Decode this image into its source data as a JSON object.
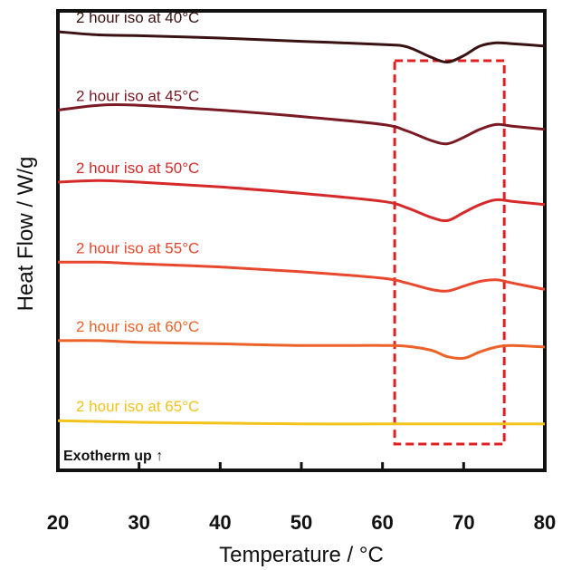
{
  "chart_data": {
    "type": "line",
    "xlabel": "Temperature / °C",
    "ylabel": "Heat Flow / W/g",
    "xlim": [
      20,
      80
    ],
    "xticks": [
      20,
      30,
      40,
      50,
      60,
      70,
      80
    ],
    "yticks_shown": false,
    "annotation": "Exotherm up ↑",
    "highlight_box": {
      "x_range": [
        61.5,
        75
      ],
      "style": "red dashed"
    },
    "series": [
      {
        "name": "2 hour iso at 40°C",
        "color": "#3a1212",
        "x": [
          20,
          25,
          30,
          40,
          50,
          60,
          63,
          66,
          68,
          70,
          72,
          74,
          76,
          80
        ],
        "y": [
          0.2,
          0.0,
          -0.05,
          -0.2,
          -0.4,
          -0.6,
          -0.75,
          -1.4,
          -1.7,
          -1.3,
          -0.7,
          -0.5,
          -0.55,
          -0.7
        ]
      },
      {
        "name": "2 hour iso at 45°C",
        "color": "#7a1a22",
        "x": [
          20,
          25,
          30,
          40,
          50,
          60,
          63,
          66,
          68,
          70,
          72,
          74,
          76,
          80
        ],
        "y": [
          -4.7,
          -4.4,
          -4.4,
          -4.7,
          -5.1,
          -5.6,
          -6.0,
          -6.6,
          -6.8,
          -6.4,
          -5.9,
          -5.6,
          -5.7,
          -5.9
        ]
      },
      {
        "name": "2 hour iso at 50°C",
        "color": "#d62a2a",
        "x": [
          20,
          25,
          30,
          40,
          50,
          60,
          63,
          66,
          68,
          70,
          72,
          74,
          76,
          80
        ],
        "y": [
          -9.2,
          -9.1,
          -9.2,
          -9.5,
          -9.9,
          -10.4,
          -10.8,
          -11.4,
          -11.6,
          -11.1,
          -10.6,
          -10.3,
          -10.4,
          -10.6
        ]
      },
      {
        "name": "2 hour iso at 55°C",
        "color": "#e8492e",
        "x": [
          20,
          25,
          30,
          40,
          50,
          60,
          63,
          66,
          68,
          70,
          72,
          74,
          76,
          80
        ],
        "y": [
          -14.2,
          -14.2,
          -14.3,
          -14.5,
          -14.8,
          -15.2,
          -15.5,
          -15.9,
          -16.0,
          -15.7,
          -15.4,
          -15.3,
          -15.5,
          -15.9
        ]
      },
      {
        "name": "2 hour iso at 60°C",
        "color": "#ec6228",
        "x": [
          20,
          25,
          30,
          40,
          50,
          60,
          63,
          66,
          68,
          70,
          72,
          74,
          76,
          80
        ],
        "y": [
          -19.1,
          -19.1,
          -19.2,
          -19.3,
          -19.4,
          -19.4,
          -19.45,
          -19.7,
          -20.1,
          -20.2,
          -19.8,
          -19.5,
          -19.4,
          -19.5
        ]
      },
      {
        "name": "2 hour iso at 65°C",
        "color": "#f2c31c",
        "x": [
          20,
          30,
          40,
          50,
          60,
          70,
          80
        ],
        "y": [
          -24.1,
          -24.2,
          -24.25,
          -24.3,
          -24.3,
          -24.3,
          -24.3
        ]
      }
    ]
  }
}
